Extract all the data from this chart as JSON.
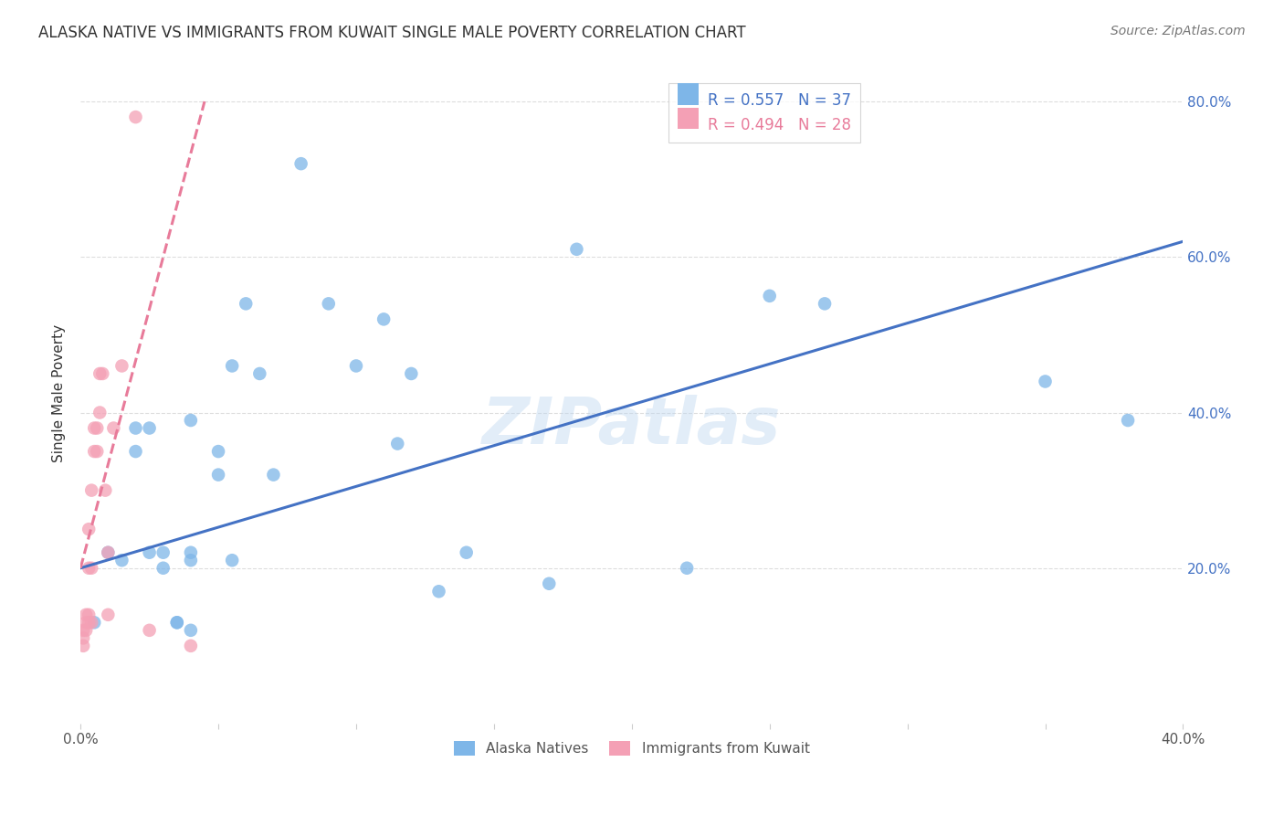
{
  "title": "ALASKA NATIVE VS IMMIGRANTS FROM KUWAIT SINGLE MALE POVERTY CORRELATION CHART",
  "source": "Source: ZipAtlas.com",
  "ylabel": "Single Male Poverty",
  "legend_blue_r": "R = 0.557",
  "legend_blue_n": "N = 37",
  "legend_pink_r": "R = 0.494",
  "legend_pink_n": "N = 28",
  "blue_scatter_x": [
    0.005,
    0.01,
    0.015,
    0.02,
    0.02,
    0.025,
    0.025,
    0.03,
    0.03,
    0.035,
    0.035,
    0.04,
    0.04,
    0.04,
    0.04,
    0.05,
    0.05,
    0.055,
    0.055,
    0.06,
    0.065,
    0.07,
    0.08,
    0.09,
    0.1,
    0.11,
    0.115,
    0.12,
    0.13,
    0.14,
    0.17,
    0.18,
    0.22,
    0.25,
    0.27,
    0.35,
    0.38
  ],
  "blue_scatter_y": [
    0.13,
    0.22,
    0.21,
    0.35,
    0.38,
    0.22,
    0.38,
    0.2,
    0.22,
    0.13,
    0.13,
    0.12,
    0.21,
    0.22,
    0.39,
    0.32,
    0.35,
    0.21,
    0.46,
    0.54,
    0.45,
    0.32,
    0.72,
    0.54,
    0.46,
    0.52,
    0.36,
    0.45,
    0.17,
    0.22,
    0.18,
    0.61,
    0.2,
    0.55,
    0.54,
    0.44,
    0.39
  ],
  "pink_scatter_x": [
    0.001,
    0.001,
    0.001,
    0.002,
    0.002,
    0.002,
    0.003,
    0.003,
    0.003,
    0.003,
    0.004,
    0.004,
    0.004,
    0.005,
    0.005,
    0.006,
    0.006,
    0.007,
    0.007,
    0.008,
    0.009,
    0.01,
    0.01,
    0.012,
    0.015,
    0.02,
    0.025,
    0.04
  ],
  "pink_scatter_y": [
    0.1,
    0.11,
    0.12,
    0.12,
    0.13,
    0.14,
    0.13,
    0.14,
    0.2,
    0.25,
    0.13,
    0.2,
    0.3,
    0.35,
    0.38,
    0.35,
    0.38,
    0.4,
    0.45,
    0.45,
    0.3,
    0.14,
    0.22,
    0.38,
    0.46,
    0.78,
    0.12,
    0.1
  ],
  "blue_line_x": [
    0.0,
    0.4
  ],
  "blue_line_y": [
    0.2,
    0.62
  ],
  "pink_line_x": [
    0.0,
    0.045
  ],
  "pink_line_y": [
    0.2,
    0.8
  ],
  "blue_color": "#7EB6E8",
  "pink_color": "#F4A0B5",
  "blue_line_color": "#4472C4",
  "pink_line_color": "#E87B9A",
  "watermark": "ZIPatlas",
  "background_color": "#FFFFFF",
  "grid_color": "#DDDDDD",
  "xlim": [
    0.0,
    0.4
  ],
  "ylim": [
    0.0,
    0.85
  ],
  "x_tick_positions": [
    0.0,
    0.05,
    0.1,
    0.15,
    0.2,
    0.25,
    0.3,
    0.35,
    0.4
  ],
  "y_tick_positions": [
    0.2,
    0.4,
    0.6,
    0.8
  ],
  "y_tick_labels": [
    "20.0%",
    "40.0%",
    "60.0%",
    "80.0%"
  ]
}
